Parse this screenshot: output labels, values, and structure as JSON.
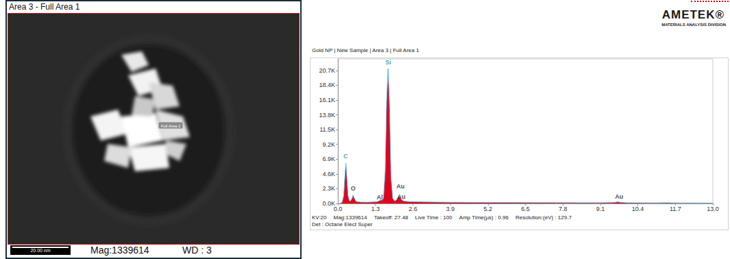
{
  "image_panel": {
    "title": "Area 3 - Full Area 1",
    "region_label": "Full Area 1",
    "scale_bar": "20.00 nm",
    "footer": [
      "Mag:1339614",
      "WD : 3"
    ]
  },
  "logo": {
    "name": "AMETEK®",
    "division": "MATERIALS ANALYSIS DIVISION"
  },
  "chart_data": {
    "type": "area",
    "title": "Gold NP | New Sample | Area 3 | Full Area 1",
    "x": [
      0.05,
      0.1,
      0.15,
      0.2,
      0.24,
      0.277,
      0.31,
      0.35,
      0.4,
      0.45,
      0.5,
      0.525,
      0.56,
      0.62,
      0.7,
      0.8,
      0.9,
      1.0,
      1.1,
      1.2,
      1.35,
      1.45,
      1.49,
      1.53,
      1.58,
      1.64,
      1.69,
      1.74,
      1.79,
      1.84,
      1.9,
      1.96,
      2.02,
      2.08,
      2.12,
      2.17,
      2.24,
      2.32,
      2.45,
      2.6,
      2.8,
      3.0,
      3.3,
      3.6,
      3.9,
      4.3,
      4.8,
      5.2,
      5.8,
      6.5,
      7.2,
      7.8,
      8.4,
      9.0,
      9.45,
      9.6,
      9.71,
      9.82,
      10.0,
      10.4,
      11.0,
      11.44,
      11.7,
      12.3,
      13.0
    ],
    "values": [
      0,
      50,
      200,
      1200,
      4000,
      6300,
      4000,
      1200,
      400,
      450,
      900,
      1300,
      900,
      350,
      250,
      220,
      200,
      200,
      210,
      230,
      260,
      450,
      550,
      500,
      800,
      5000,
      16000,
      21000,
      15000,
      4000,
      800,
      400,
      500,
      900,
      1100,
      800,
      450,
      350,
      300,
      280,
      260,
      240,
      220,
      200,
      190,
      180,
      170,
      160,
      150,
      140,
      130,
      120,
      115,
      110,
      130,
      180,
      250,
      170,
      110,
      100,
      90,
      110,
      85,
      75,
      70
    ],
    "color": "#e3001b",
    "xlim": [
      0,
      13
    ],
    "xticks": [
      {
        "value": 0,
        "label": "0.0"
      },
      1.3,
      2.6,
      3.9,
      5.2,
      6.5,
      7.8,
      9.1,
      10.4,
      11.7,
      {
        "value": 13,
        "label": "13.0"
      }
    ],
    "ylim": [
      0,
      22500
    ],
    "yticks": [
      {
        "value": 0,
        "label": "0.0K"
      },
      {
        "value": 2300,
        "label": "2.3K"
      },
      {
        "value": 4600,
        "label": "4.6K"
      },
      {
        "value": 6900,
        "label": "6.9K"
      },
      {
        "value": 9200,
        "label": "9.2K"
      },
      {
        "value": 11500,
        "label": "11.5K"
      },
      {
        "value": 13800,
        "label": "13.8K"
      },
      {
        "value": 16100,
        "label": "16.1K"
      },
      {
        "value": 18400,
        "label": "18.4K"
      },
      {
        "value": 20700,
        "label": "20.7K"
      }
    ],
    "grid": false,
    "annotations": [
      {
        "text": "Si",
        "x": 1.74,
        "y": 21950,
        "color": "#178a8c"
      },
      {
        "text": "C",
        "x": 0.27,
        "y": 7400,
        "color": "#178a8c"
      },
      {
        "text": "O",
        "x": 0.53,
        "y": 2300,
        "color": "#222222"
      },
      {
        "text": "Al",
        "x": 1.45,
        "y": 1000,
        "color": "#222222"
      },
      {
        "text": "Au",
        "x": 2.17,
        "y": 2700,
        "color": "#222222"
      },
      {
        "text": "Au",
        "x": 2.2,
        "y": 1050,
        "color": "#222222"
      },
      {
        "text": "Au",
        "x": 9.75,
        "y": 1050,
        "color": "#222222"
      }
    ]
  },
  "spectrum_footer": {
    "settings": [
      "KV:20",
      "Mag:1339614",
      "Takeoff: 27.48",
      "Live Time : 100",
      "Amp Time(µs) : 0.96",
      "Resolution:(eV) : 129.7"
    ],
    "detector": "Det : Octane Elect Super"
  }
}
